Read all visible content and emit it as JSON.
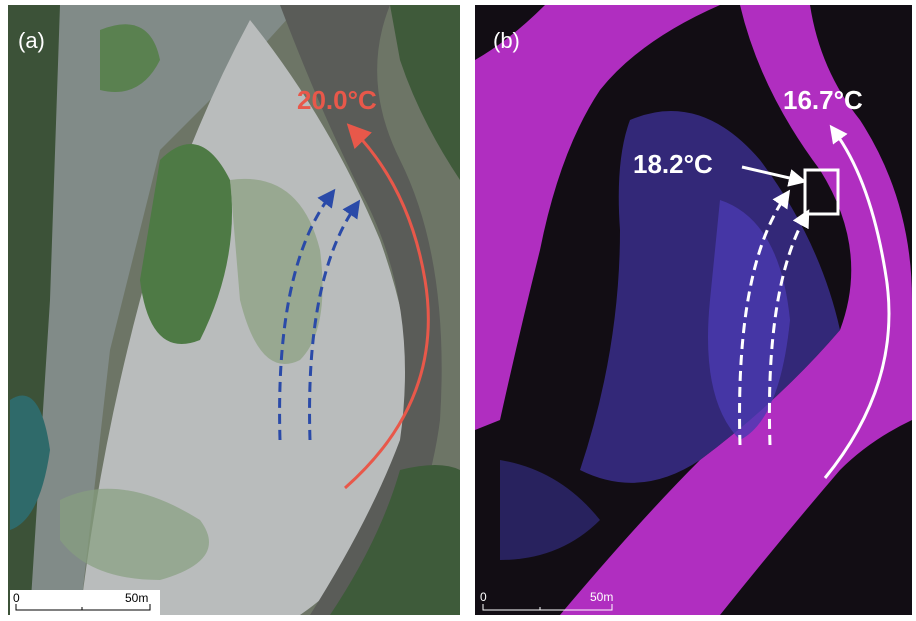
{
  "panels": [
    {
      "label": "(a)",
      "annotations": [
        "20.0°C"
      ],
      "scale_bar": {
        "start": "0",
        "end": "50m"
      }
    },
    {
      "label": "(b)",
      "annotations": [
        "18.2°C",
        "16.7°C"
      ],
      "scale_bar": {
        "start": "0",
        "end": "50m"
      }
    }
  ]
}
